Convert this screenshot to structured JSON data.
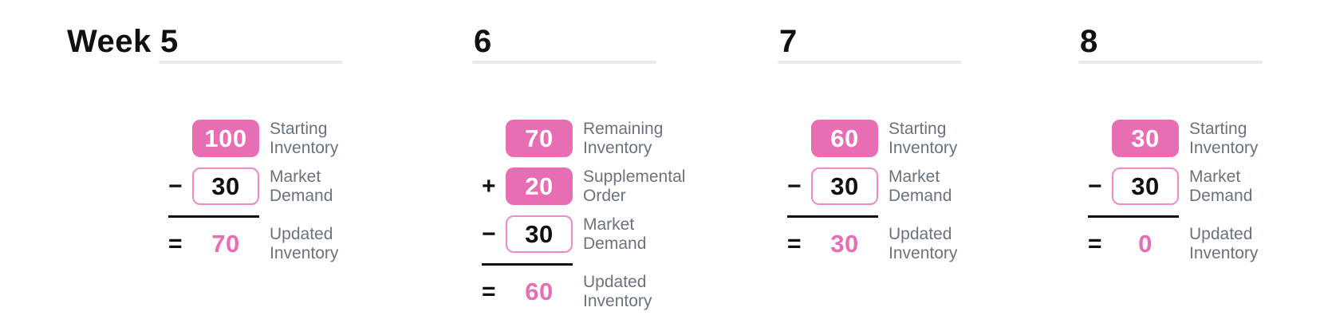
{
  "title_label": "Week",
  "colors": {
    "pink": "#e86eb4",
    "pink_border": "#f089c7",
    "label_gray": "#6b7280",
    "underline_gray": "#ebebee",
    "line_black": "#111111"
  },
  "weeks": [
    {
      "number": "5",
      "rows": [
        {
          "op": "",
          "value": "100",
          "style": "filled",
          "label": "Starting Inventory"
        },
        {
          "op": "−",
          "value": "30",
          "style": "outlined",
          "label": "Market Demand"
        }
      ],
      "result": {
        "op": "=",
        "value": "70",
        "style": "result",
        "label": "Updated Inventory"
      }
    },
    {
      "number": "6",
      "rows": [
        {
          "op": "",
          "value": "70",
          "style": "filled",
          "label": "Remaining Inventory"
        },
        {
          "op": "+",
          "value": "20",
          "style": "filled",
          "label": "Supplemental Order"
        },
        {
          "op": "−",
          "value": "30",
          "style": "outlined",
          "label": "Market Demand"
        }
      ],
      "result": {
        "op": "=",
        "value": "60",
        "style": "result",
        "label": "Updated Inventory"
      }
    },
    {
      "number": "7",
      "rows": [
        {
          "op": "",
          "value": "60",
          "style": "filled",
          "label": "Starting Inventory"
        },
        {
          "op": "−",
          "value": "30",
          "style": "outlined",
          "label": "Market Demand"
        }
      ],
      "result": {
        "op": "=",
        "value": "30",
        "style": "result",
        "label": "Updated Inventory"
      }
    },
    {
      "number": "8",
      "rows": [
        {
          "op": "",
          "value": "30",
          "style": "filled",
          "label": "Starting Inventory"
        },
        {
          "op": "−",
          "value": "30",
          "style": "outlined",
          "label": "Market Demand"
        }
      ],
      "result": {
        "op": "=",
        "value": "0",
        "style": "result",
        "label": "Updated Inventory"
      }
    }
  ]
}
